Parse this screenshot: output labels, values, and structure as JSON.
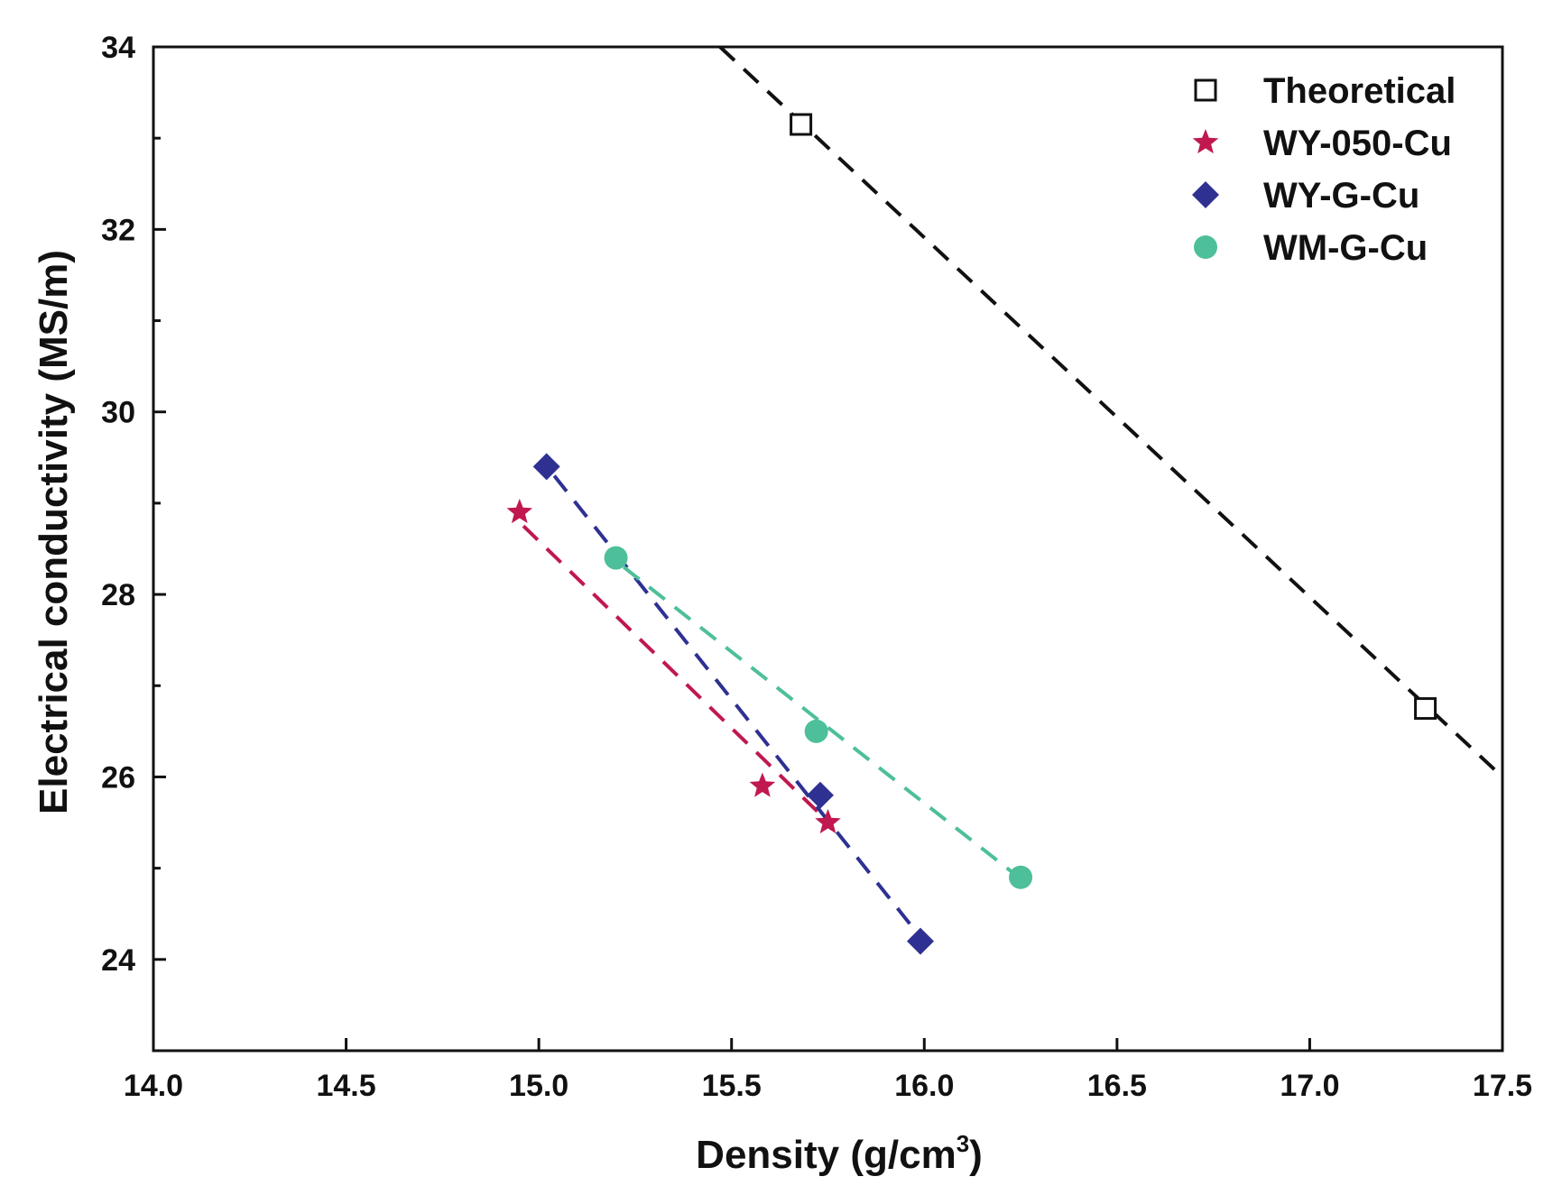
{
  "chart_data": {
    "type": "scatter",
    "xlabel": "Density (g/cm",
    "xlabel_sup": "3",
    "xlabel_end": ")",
    "ylabel": "Electrical conductivity (MS/m)",
    "xlim": [
      14.0,
      17.5
    ],
    "ylim": [
      23.0,
      34.0
    ],
    "x_ticks": [
      14.0,
      14.5,
      15.0,
      15.5,
      16.0,
      16.5,
      17.0,
      17.5
    ],
    "x_tick_labels": [
      "14.0",
      "14.5",
      "15.0",
      "15.5",
      "16.0",
      "16.5",
      "17.0",
      "17.5"
    ],
    "y_ticks": [
      24,
      26,
      28,
      30,
      32,
      34
    ],
    "y_tick_labels": [
      "24",
      "26",
      "28",
      "30",
      "32",
      "34"
    ],
    "y_minor_ticks": [
      23,
      25,
      27,
      29,
      31,
      33
    ],
    "legend_position": "top-right",
    "series": [
      {
        "name": "Theoretical",
        "marker": "square-open",
        "color": "#111111",
        "x": [
          15.68,
          17.3
        ],
        "y": [
          33.15,
          26.75
        ],
        "trend": {
          "x": [
            15.47,
            17.5
          ],
          "y": [
            34.0,
            26.0
          ]
        }
      },
      {
        "name": "WY-050-Cu",
        "marker": "star",
        "color": "#c0184f",
        "x": [
          14.95,
          15.58,
          15.75
        ],
        "y": [
          28.9,
          25.9,
          25.5
        ],
        "trend": {
          "x": [
            14.96,
            15.74
          ],
          "y": [
            28.75,
            25.55
          ]
        }
      },
      {
        "name": "WY-G-Cu",
        "marker": "diamond",
        "color": "#2e3192",
        "x": [
          15.02,
          15.73,
          15.99
        ],
        "y": [
          29.4,
          25.8,
          24.2
        ],
        "trend": {
          "x": [
            15.04,
            15.97
          ],
          "y": [
            29.3,
            24.35
          ]
        }
      },
      {
        "name": "WM-G-Cu",
        "marker": "circle",
        "color": "#4dbf9a",
        "x": [
          15.2,
          15.72,
          16.25
        ],
        "y": [
          28.4,
          26.5,
          24.9
        ],
        "trend": {
          "x": [
            15.22,
            16.23
          ],
          "y": [
            28.3,
            24.95
          ]
        }
      }
    ]
  }
}
